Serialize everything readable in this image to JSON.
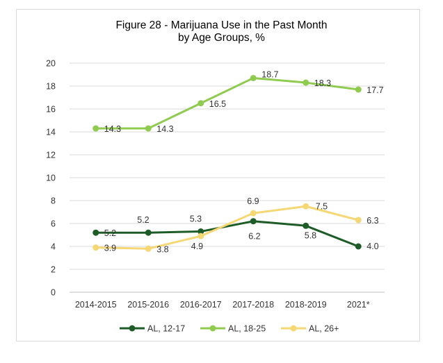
{
  "chart_data": {
    "type": "line",
    "title_line1": "Figure 28 - Marijuana Use in the Past Month",
    "title_line2": "by Age Groups, %",
    "categories": [
      "2014-2015",
      "2015-2016",
      "2016-2017",
      "2017-2018",
      "2018-2019",
      "2021*"
    ],
    "ylim": [
      0,
      20
    ],
    "yticks": [
      "0",
      "2",
      "4",
      "6",
      "8",
      "10",
      "12",
      "14",
      "16",
      "18",
      "20"
    ],
    "grid": true,
    "legend_position": "bottom",
    "series": [
      {
        "name": "AL, 12-17",
        "color": "#1e5c27",
        "values": [
          5.2,
          5.2,
          5.3,
          6.2,
          5.8,
          4.0
        ],
        "labels": [
          "5.2",
          "5.2",
          "5.3",
          "6.2",
          "5.8",
          "4.0"
        ]
      },
      {
        "name": "AL, 18-25",
        "color": "#8fcb4f",
        "values": [
          14.3,
          14.3,
          16.5,
          18.7,
          18.3,
          17.7
        ],
        "labels": [
          "14.3",
          "14.3",
          "16.5",
          "18.7",
          "18.3",
          "17.7"
        ]
      },
      {
        "name": "AL, 26+",
        "color": "#f5d774",
        "values": [
          3.9,
          3.8,
          4.9,
          6.9,
          7.5,
          6.3
        ],
        "labels": [
          "3.9",
          "3.8",
          "4.9",
          "6.9",
          "7.5",
          "6.3"
        ]
      }
    ]
  }
}
